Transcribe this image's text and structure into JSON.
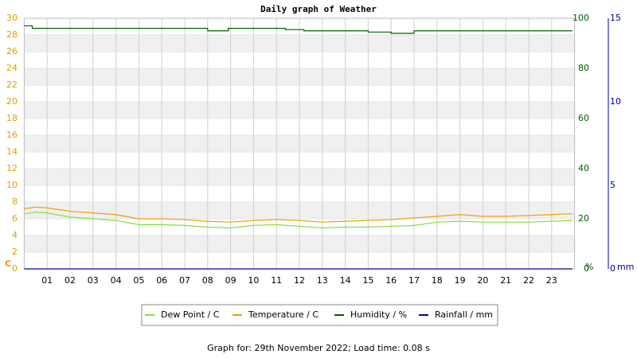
{
  "chart_data": {
    "type": "line",
    "title": "Daily graph of Weather",
    "y_unit": "C",
    "y2_unit": "%",
    "y3_unit": "mm",
    "xlim": [
      0,
      24
    ],
    "xticks": [
      {
        "value": 1,
        "label": "01"
      },
      {
        "value": 2,
        "label": "02"
      },
      {
        "value": 3,
        "label": "03"
      },
      {
        "value": 4,
        "label": "04"
      },
      {
        "value": 5,
        "label": "05"
      },
      {
        "value": 6,
        "label": "06"
      },
      {
        "value": 7,
        "label": "07"
      },
      {
        "value": 8,
        "label": "08"
      },
      {
        "value": 9,
        "label": "09"
      },
      10,
      11,
      12,
      13,
      14,
      15,
      16,
      17,
      18,
      19,
      20,
      21,
      22,
      23
    ],
    "ylim": [
      0,
      30
    ],
    "yticks": [
      0,
      2,
      4,
      6,
      8,
      10,
      12,
      14,
      16,
      18,
      20,
      22,
      24,
      26,
      28,
      30
    ],
    "y2lim": [
      0,
      100
    ],
    "y2ticks": [
      0,
      20,
      40,
      60,
      80,
      100
    ],
    "y3lim": [
      0,
      15
    ],
    "y3ticks": [
      0,
      5,
      10,
      15
    ],
    "grid": true,
    "series": [
      {
        "name": "Dew Point / C",
        "color": "#80e040",
        "axis": "y",
        "x": [
          0,
          0.5,
          1,
          2,
          3,
          4,
          5,
          6,
          7,
          8,
          9,
          10,
          11,
          12,
          13,
          14,
          15,
          16,
          17,
          18,
          19,
          20,
          21,
          22,
          23,
          23.9
        ],
        "values": [
          6.6,
          6.8,
          6.7,
          6.2,
          6.0,
          5.8,
          5.3,
          5.3,
          5.2,
          5.0,
          4.9,
          5.2,
          5.3,
          5.1,
          4.9,
          5.0,
          5.0,
          5.1,
          5.2,
          5.6,
          5.7,
          5.6,
          5.6,
          5.6,
          5.7,
          5.8
        ]
      },
      {
        "name": "Temperature / C",
        "color": "#f0a000",
        "axis": "y",
        "x": [
          0,
          0.5,
          1,
          2,
          3,
          4,
          5,
          6,
          7,
          8,
          9,
          10,
          11,
          12,
          13,
          14,
          15,
          16,
          17,
          18,
          19,
          20,
          21,
          22,
          23,
          23.9
        ],
        "values": [
          7.2,
          7.4,
          7.3,
          6.9,
          6.7,
          6.5,
          6.0,
          6.0,
          5.9,
          5.7,
          5.6,
          5.8,
          5.9,
          5.8,
          5.6,
          5.7,
          5.8,
          5.9,
          6.1,
          6.3,
          6.5,
          6.3,
          6.3,
          6.4,
          6.5,
          6.6
        ]
      },
      {
        "name": "Humidity / %",
        "color": "#006000",
        "axis": "y2",
        "x": [
          0,
          0.35,
          0.35,
          8.0,
          8.0,
          8.9,
          8.9,
          11.4,
          11.4,
          12.2,
          12.2,
          15.0,
          15.0,
          16.0,
          16.0,
          17.0,
          17.0,
          23.9
        ],
        "values": [
          97,
          97,
          96,
          96,
          95,
          95,
          96,
          96,
          95.5,
          95.5,
          95,
          95,
          94.5,
          94.5,
          94,
          94,
          95,
          95
        ]
      },
      {
        "name": "Rainfall / mm",
        "color": "#0000a0",
        "axis": "y3",
        "x": [
          0,
          23.9
        ],
        "values": [
          0,
          0
        ]
      }
    ],
    "footer": "Graph for: 29th November 2022; Load time: 0.08 s"
  }
}
